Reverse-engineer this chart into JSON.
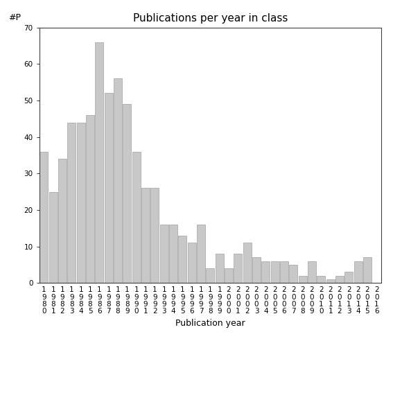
{
  "title": "Publications per year in class",
  "xlabel": "Publication year",
  "ylabel": "#P",
  "ylim": [
    0,
    70
  ],
  "yticks": [
    0,
    10,
    20,
    30,
    40,
    50,
    60,
    70
  ],
  "years": [
    "1980",
    "1981",
    "1982",
    "1983",
    "1984",
    "1985",
    "1986",
    "1987",
    "1988",
    "1989",
    "1990",
    "1991",
    "1992",
    "1993",
    "1994",
    "1995",
    "1996",
    "1997",
    "1998",
    "1999",
    "2000",
    "2001",
    "2002",
    "2003",
    "2004",
    "2005",
    "2006",
    "2007",
    "2008",
    "2009",
    "2010",
    "2011",
    "2012",
    "2013",
    "2014",
    "2015",
    "2016"
  ],
  "values": [
    36,
    25,
    34,
    44,
    44,
    46,
    66,
    52,
    56,
    49,
    36,
    26,
    26,
    16,
    16,
    13,
    11,
    16,
    4,
    8,
    4,
    8,
    11,
    7,
    6,
    6,
    6,
    5,
    2,
    6,
    2,
    1,
    2,
    3,
    6,
    7,
    0
  ],
  "bar_color": "#c8c8c8",
  "bar_edgecolor": "#a0a0a0",
  "background_color": "#ffffff",
  "title_fontsize": 11,
  "label_fontsize": 9,
  "tick_fontsize": 7.5
}
